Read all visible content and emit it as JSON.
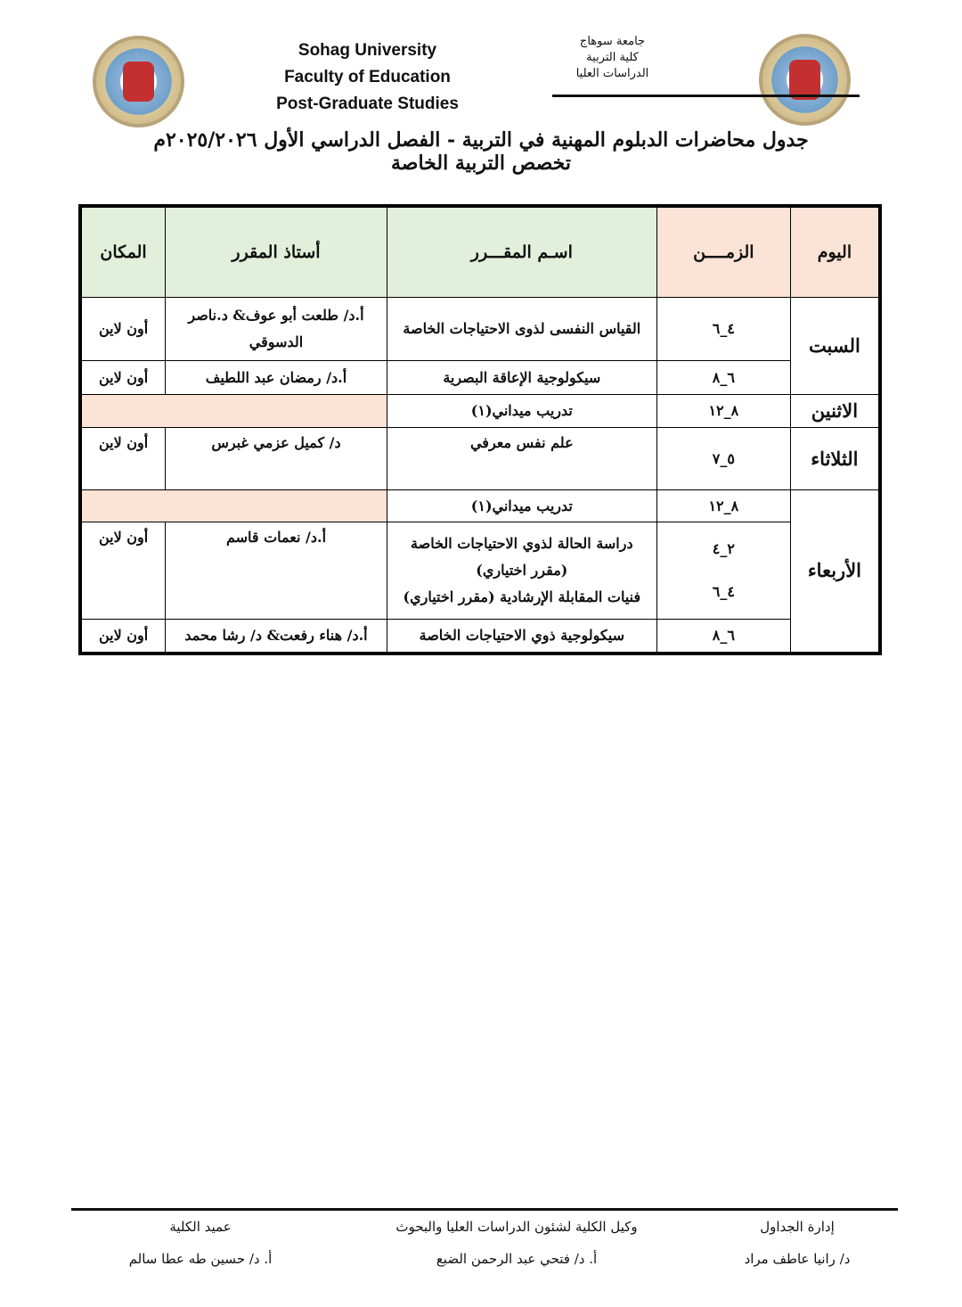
{
  "header": {
    "en": [
      "Sohag University",
      "Faculty of Education",
      "Post-Graduate Studies"
    ],
    "ar": [
      "جامعة سوهاج",
      "كلية التربية",
      "الدراسات العليا"
    ],
    "title": "جدول محاضرات الدبلوم المهنية في التربية - الفصل الدراسي الأول ٢٠٢٥/٢٠٢٦م",
    "subtitle": "تخصص التربية الخاصة"
  },
  "table": {
    "headers": [
      "اليوم",
      "الزمــــن",
      "اسـم المقـــرر",
      "أستاذ المقرر",
      "المكان"
    ],
    "rows": [
      {
        "day": "السبت",
        "time": "٤_٦",
        "course": "القياس النفسى لذوى الاحتياجات الخاصة",
        "instructor": "أ.د/ طلعت أبو عوف& د.ناصر الدسوقي",
        "place": "أون لاين"
      },
      {
        "time": "٦_٨",
        "course": "سيكولوجية الإعاقة البصرية",
        "instructor": "أ.د/ رمضان عبد اللطيف",
        "place": "أون لاين"
      },
      {
        "day": "الاثنين",
        "time": "٨_١٢",
        "course": "تدريب ميداني(١)"
      },
      {
        "day": "الثلاثاء",
        "time": "٥_٧",
        "course": "علم نفس معرفي",
        "instructor": "د/ كميل عزمي غبرس",
        "place": "أون لاين"
      },
      {
        "day": "الأربعاء",
        "time": "٨_١٢",
        "course": "تدريب ميداني(١)"
      },
      {
        "time": "٢_٤",
        "time2": "٤_٦",
        "course": "دراسة الحالة لذوي الاحتياجات الخاصة (مقرر اختياري)",
        "course2": "فنيات المقابلة الإرشادية (مقرر اختياري)",
        "instructor": "أ.د/ نعمات قاسم",
        "place": "أون لاين"
      },
      {
        "time": "٦_٨",
        "course": "سيكولوجية ذوي الاحتياجات الخاصة",
        "instructor": "أ.د/ هناء رفعت& د/ رشا محمد",
        "place": "أون لاين"
      }
    ]
  },
  "colors": {
    "pink": "#fbe3d6",
    "green": "#e2efda"
  },
  "footer": [
    {
      "role": "إدارة الجداول",
      "name": "د/ رانيا عاطف مراد"
    },
    {
      "role": "وكيل الكلية لشئون الدراسات العليا والبحوث",
      "name": "أ. د/ فتحي عبد الرحمن الضبع"
    },
    {
      "role": "عميد الكلية",
      "name": "أ. د/ حسين طه عطا سالم"
    }
  ]
}
